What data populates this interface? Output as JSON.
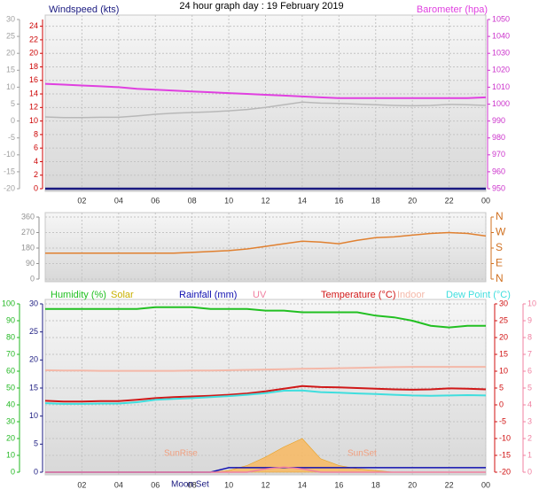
{
  "title": "24 hour graph day : 19 February 2019",
  "chart_data": [
    {
      "type": "line",
      "x": [
        0,
        1,
        2,
        3,
        4,
        5,
        6,
        7,
        8,
        9,
        10,
        11,
        12,
        13,
        14,
        15,
        16,
        17,
        18,
        19,
        20,
        21,
        22,
        23,
        24
      ],
      "xlim": [
        0,
        24
      ],
      "xticks": [
        {
          "value": 2,
          "label": "02"
        },
        {
          "value": 4,
          "label": "04"
        },
        {
          "value": 6,
          "label": "06"
        },
        {
          "value": 8,
          "label": "08"
        },
        10,
        12,
        14,
        16,
        18,
        20,
        22,
        {
          "value": 24,
          "label": "00"
        }
      ],
      "ylim": [
        0,
        25
      ],
      "yticks": [
        0,
        2,
        4,
        6,
        8,
        10,
        12,
        14,
        16,
        18,
        20,
        22,
        24
      ],
      "y2lim": [
        950,
        1050
      ],
      "y2ticks": [
        950,
        960,
        970,
        980,
        990,
        1000,
        1010,
        1020,
        1030,
        1040,
        1050
      ],
      "y3lim": [
        -20,
        30
      ],
      "y3ticks": [
        -20,
        -15,
        -10,
        -5,
        0,
        5,
        10,
        15,
        20,
        25,
        30
      ],
      "axis_colors": {
        "y": "#cc0000",
        "y2": "#cc33cc",
        "y3": "#a0a0a0"
      },
      "grid": true,
      "series": [
        {
          "name": "Windspeed (kts)",
          "color": "#1a1a80",
          "axis": "y",
          "values": [
            0,
            0,
            0,
            0,
            0,
            0,
            0,
            0,
            0,
            0,
            0,
            0,
            0,
            0,
            0,
            0,
            0,
            0,
            0,
            0,
            0,
            0,
            0,
            0,
            0
          ]
        },
        {
          "name": "Barometer (hpa)",
          "color": "#e040e0",
          "axis": "y2",
          "values": [
            1012,
            1011.5,
            1011,
            1010.5,
            1010,
            1009,
            1008.5,
            1008,
            1007.5,
            1007,
            1006.5,
            1006,
            1005.5,
            1005,
            1004.5,
            1004,
            1003.5,
            1003.5,
            1003.5,
            1003.5,
            1003.5,
            1003.5,
            1003.5,
            1003.5,
            1004
          ]
        },
        {
          "color": "#b8b8b8",
          "axis": "y3",
          "values": [
            1.2,
            1.0,
            1.0,
            1.1,
            1.1,
            1.5,
            2.0,
            2.3,
            2.5,
            2.7,
            3.0,
            3.4,
            4.0,
            4.8,
            5.6,
            5.3,
            5.2,
            5.0,
            4.8,
            4.6,
            4.5,
            4.6,
            4.9,
            4.8,
            4.6
          ]
        }
      ]
    },
    {
      "type": "line",
      "x": [
        0,
        1,
        2,
        3,
        4,
        5,
        6,
        7,
        8,
        9,
        10,
        11,
        12,
        13,
        14,
        15,
        16,
        17,
        18,
        19,
        20,
        21,
        22,
        23,
        24
      ],
      "xlim": [
        0,
        24
      ],
      "xticks": [
        2,
        4,
        6,
        8,
        10,
        12,
        14,
        16,
        18,
        20,
        22,
        24
      ],
      "ylim": [
        0,
        360
      ],
      "yticks": [
        0,
        90,
        180,
        270,
        360
      ],
      "y2lim": [
        0,
        360
      ],
      "y2ticks": [
        {
          "value": 0,
          "label": "N"
        },
        {
          "value": 90,
          "label": "E"
        },
        {
          "value": 180,
          "label": "S"
        },
        {
          "value": 270,
          "label": "W"
        },
        {
          "value": 360,
          "label": "N"
        }
      ],
      "axis_colors": {
        "y": "#909090",
        "y2": "#d07020"
      },
      "grid": true,
      "series": [
        {
          "color": "#e08030",
          "axis": "y",
          "values": [
            150,
            150,
            150,
            150,
            150,
            150,
            150,
            150,
            155,
            160,
            165,
            175,
            190,
            205,
            220,
            215,
            205,
            225,
            240,
            245,
            255,
            265,
            270,
            265,
            250
          ]
        }
      ]
    },
    {
      "type": "line",
      "x": [
        0,
        1,
        2,
        3,
        4,
        5,
        6,
        7,
        8,
        9,
        10,
        11,
        12,
        13,
        14,
        15,
        16,
        17,
        18,
        19,
        20,
        21,
        22,
        23,
        24
      ],
      "xlim": [
        0,
        24
      ],
      "xticks": [
        {
          "value": 2,
          "label": "02"
        },
        {
          "value": 4,
          "label": "04"
        },
        {
          "value": 6,
          "label": "06"
        },
        {
          "value": 8,
          "label": "08"
        },
        10,
        12,
        14,
        16,
        18,
        20,
        22,
        {
          "value": 24,
          "label": "00"
        }
      ],
      "ylim": [
        0,
        100
      ],
      "yticks": [
        0,
        10,
        20,
        30,
        40,
        50,
        60,
        70,
        80,
        90,
        100
      ],
      "y2lim": [
        -20,
        30
      ],
      "y2ticks": [
        -20,
        -15,
        -10,
        -5,
        0,
        5,
        10,
        15,
        20,
        25,
        30
      ],
      "y3lim": [
        0,
        30
      ],
      "y3ticks": [
        0,
        5,
        10,
        15,
        20,
        25,
        30
      ],
      "y4lim": [
        0,
        10
      ],
      "y4ticks": [
        0,
        1,
        2,
        3,
        4,
        5,
        6,
        7,
        8,
        9,
        10
      ],
      "axis_colors": {
        "y": "#22b822",
        "y2": "#d01010",
        "y3": "#1a1a80",
        "y4": "#f080a0"
      },
      "grid": true,
      "annotations": [
        "SunRise",
        "SunSet",
        "Moon Set"
      ],
      "series": [
        {
          "name": "Humidity (%)",
          "color": "#22c022",
          "axis": "y",
          "values": [
            97,
            97,
            97,
            97,
            97,
            97,
            98,
            98,
            98,
            97,
            97,
            97,
            96,
            96,
            95,
            95,
            95,
            95,
            93,
            92,
            90,
            87,
            86,
            87,
            87
          ]
        },
        {
          "name": "Solar",
          "color": "#f8b860",
          "axis": "y",
          "style": "area",
          "values": [
            0,
            0,
            0,
            0,
            0,
            0,
            0,
            0,
            0,
            0,
            1,
            4,
            9,
            15,
            20,
            8,
            4,
            2,
            1,
            0,
            0,
            0,
            0,
            0,
            0
          ]
        },
        {
          "name": "Rainfall (mm)",
          "color": "#1010b0",
          "axis": "y3",
          "values": [
            0,
            0,
            0,
            0,
            0,
            0,
            0,
            0,
            0,
            0,
            0.8,
            0.8,
            0.8,
            0.8,
            0.8,
            0.8,
            0.8,
            0.8,
            0.8,
            0.8,
            0.8,
            0.8,
            0.8,
            0.8,
            0.8
          ]
        },
        {
          "name": "UV",
          "color": "#f080a0",
          "axis": "y4",
          "values": [
            0,
            0,
            0,
            0,
            0,
            0,
            0,
            0,
            0,
            0,
            0,
            0,
            0.2,
            0.3,
            0.2,
            0,
            0,
            0,
            0,
            0,
            0,
            0,
            0,
            0,
            0
          ]
        },
        {
          "name": "Temperature (°C)",
          "color": "#d01818",
          "axis": "y2",
          "values": [
            1.2,
            1.0,
            1.0,
            1.1,
            1.1,
            1.5,
            2.0,
            2.3,
            2.5,
            2.7,
            3.0,
            3.4,
            4.0,
            4.8,
            5.6,
            5.3,
            5.2,
            5.0,
            4.8,
            4.6,
            4.5,
            4.6,
            4.9,
            4.8,
            4.6
          ]
        },
        {
          "name": "Indoor",
          "color": "#f4b8a8",
          "axis": "y2",
          "values": [
            10.3,
            10.2,
            10.2,
            10.1,
            10.1,
            10.1,
            10.1,
            10.1,
            10.2,
            10.2,
            10.3,
            10.4,
            10.5,
            10.6,
            10.7,
            10.8,
            10.9,
            11,
            11.1,
            11.2,
            11.3,
            11.3,
            11.3,
            11.3,
            11.3
          ]
        },
        {
          "name": "Dew Point (°C)",
          "color": "#40dede",
          "axis": "y2",
          "values": [
            0.5,
            0.3,
            0.3,
            0.4,
            0.4,
            0.8,
            1.5,
            1.8,
            2.0,
            2.3,
            2.6,
            3.0,
            3.5,
            4.2,
            4.3,
            3.8,
            3.6,
            3.4,
            3.2,
            3.0,
            2.8,
            2.7,
            2.8,
            2.9,
            2.8
          ]
        }
      ]
    }
  ]
}
